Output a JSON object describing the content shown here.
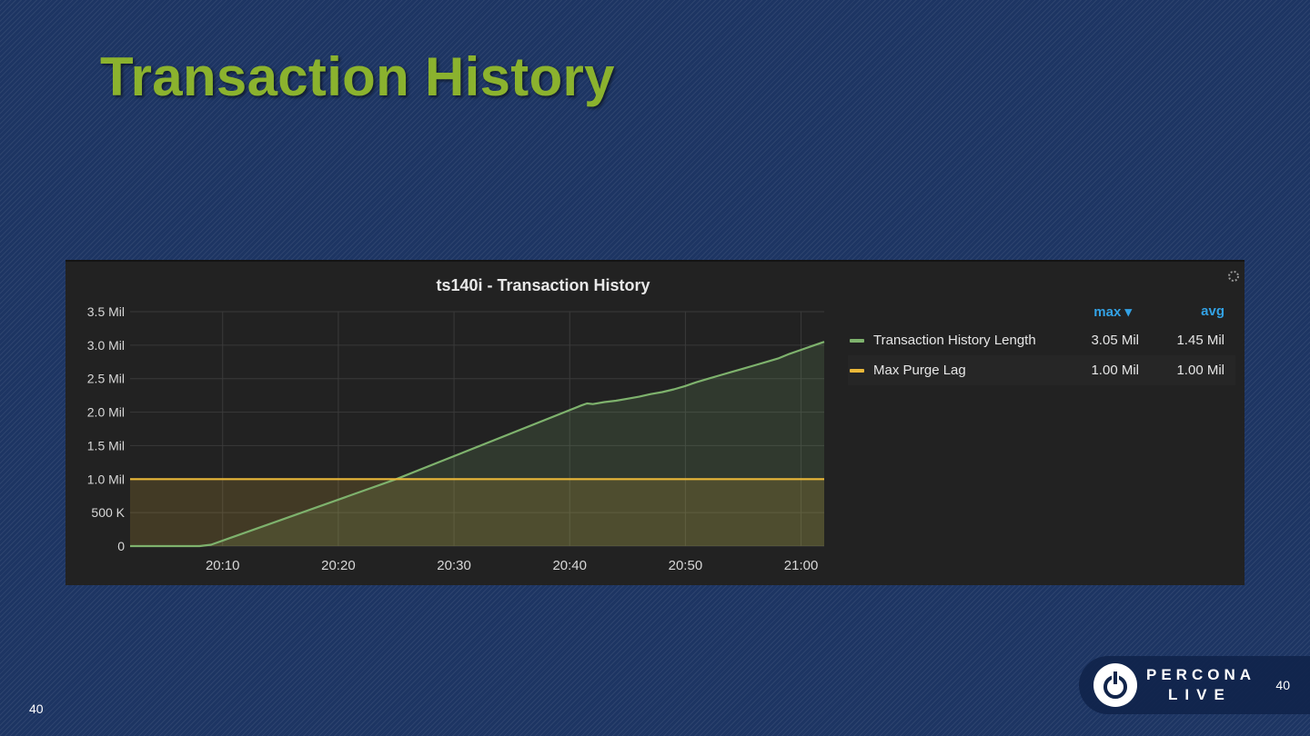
{
  "slide": {
    "title": "Transaction History",
    "page_number_left": "40",
    "page_number_right": "40"
  },
  "brand": {
    "line1": "PERCONA",
    "line2": "LIVE",
    "logo_icon": "power-icon"
  },
  "panel": {
    "title": "ts140i - Transaction History",
    "menu_icon": "gear-icon"
  },
  "legend": {
    "columns": {
      "max": "max ▾",
      "avg": "avg"
    },
    "items": [
      {
        "name": "Transaction History Length",
        "max": "3.05 Mil",
        "avg": "1.45 Mil",
        "color": "#7eb26d"
      },
      {
        "name": "Max Purge Lag",
        "max": "1.00 Mil",
        "avg": "1.00 Mil",
        "color": "#eab839"
      }
    ]
  },
  "colors": {
    "background": "#1d3563",
    "title": "#8bb22e",
    "panel": "#222222",
    "series_green": "#7eb26d",
    "series_yellow": "#eab839",
    "legend_header": "#33a2e5"
  },
  "chart_data": {
    "type": "area",
    "title": "ts140i - Transaction History",
    "xlabel": "",
    "ylabel": "",
    "x_unit": "time",
    "xlim": [
      "20:02",
      "21:02"
    ],
    "ylim": [
      0,
      3500000
    ],
    "x_ticks": [
      "20:10",
      "20:20",
      "20:30",
      "20:40",
      "20:50",
      "21:00"
    ],
    "y_ticks": [
      {
        "value": 0,
        "label": "0"
      },
      {
        "value": 500000,
        "label": "500 K"
      },
      {
        "value": 1000000,
        "label": "1.0 Mil"
      },
      {
        "value": 1500000,
        "label": "1.5 Mil"
      },
      {
        "value": 2000000,
        "label": "2.0 Mil"
      },
      {
        "value": 2500000,
        "label": "2.5 Mil"
      },
      {
        "value": 3000000,
        "label": "3.0 Mil"
      },
      {
        "value": 3500000,
        "label": "3.5 Mil"
      }
    ],
    "grid": true,
    "legend_position": "right",
    "series": [
      {
        "name": "Transaction History Length",
        "color": "#7eb26d",
        "x": [
          "20:02",
          "20:08",
          "20:09",
          "20:25",
          "20:41",
          "20:41.5",
          "20:42",
          "20:43",
          "20:44",
          "20:45",
          "20:46",
          "20:47",
          "20:48",
          "20:49",
          "20:50",
          "20:51",
          "20:52",
          "20:53",
          "20:54",
          "20:55",
          "20:56",
          "20:57",
          "20:58",
          "20:59",
          "21:00",
          "21:01",
          "21:02"
        ],
        "values": [
          0,
          0,
          20000,
          1000000,
          2100000,
          2130000,
          2120000,
          2150000,
          2170000,
          2200000,
          2230000,
          2270000,
          2300000,
          2340000,
          2390000,
          2450000,
          2500000,
          2550000,
          2600000,
          2650000,
          2700000,
          2750000,
          2800000,
          2870000,
          2930000,
          2990000,
          3050000
        ]
      },
      {
        "name": "Max Purge Lag",
        "color": "#eab839",
        "x": [
          "20:02",
          "21:02"
        ],
        "values": [
          1000000,
          1000000
        ]
      }
    ]
  }
}
